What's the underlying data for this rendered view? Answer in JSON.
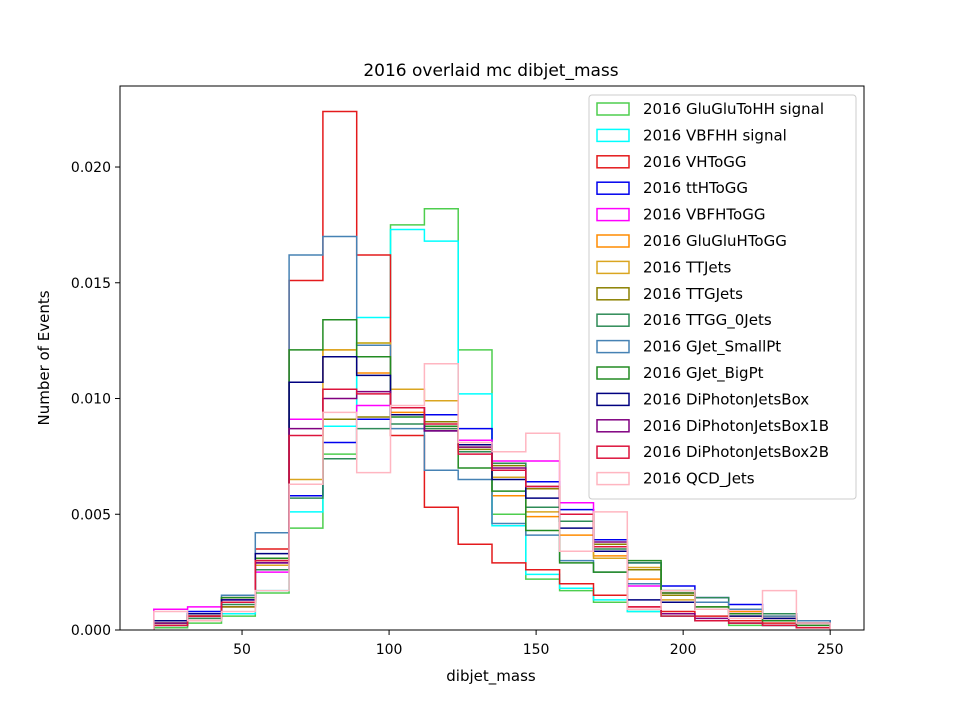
{
  "chart_data": {
    "type": "step-histogram",
    "title": "2016 overlaid mc dibjet_mass",
    "xlabel": "dibjet_mass",
    "ylabel": "Number of Events",
    "xlim": [
      8.5,
      261.5
    ],
    "ylim": [
      0,
      0.0235
    ],
    "x_ticks": [
      {
        "value": 50,
        "label": "50"
      },
      {
        "value": 100,
        "label": "100"
      },
      {
        "value": 150,
        "label": "150"
      },
      {
        "value": 200,
        "label": "200"
      },
      {
        "value": 250,
        "label": "250"
      }
    ],
    "y_ticks": [
      {
        "value": 0.0,
        "label": "0.000"
      },
      {
        "value": 0.005,
        "label": "0.005"
      },
      {
        "value": 0.01,
        "label": "0.010"
      },
      {
        "value": 0.015,
        "label": "0.015"
      },
      {
        "value": 0.02,
        "label": "0.020"
      }
    ],
    "bin_edges": [
      20,
      31.5,
      43,
      54.5,
      66,
      77.5,
      89,
      100.5,
      112,
      123.5,
      135,
      146.5,
      158,
      169.5,
      181,
      192.5,
      204,
      215.5,
      227,
      238.5,
      250
    ],
    "legend_position": "upper right",
    "grid": false,
    "series": [
      {
        "name": "2016 GluGluToHH signal",
        "color": "#4ece4e",
        "values": [
          0.0001,
          0.0003,
          0.0006,
          0.0016,
          0.0044,
          0.0076,
          0.0124,
          0.0175,
          0.0182,
          0.0121,
          0.005,
          0.0022,
          0.0017,
          0.0012,
          0.0008,
          0.0006,
          0.0004,
          0.0002,
          0.0002,
          0.0001
        ]
      },
      {
        "name": "2016 VBFHH signal",
        "color": "#00ffff",
        "values": [
          0.0002,
          0.0004,
          0.0007,
          0.0017,
          0.0051,
          0.0088,
          0.0135,
          0.0173,
          0.0168,
          0.0102,
          0.0045,
          0.0024,
          0.0018,
          0.0013,
          0.0008,
          0.0006,
          0.0004,
          0.0003,
          0.0002,
          0.0001
        ]
      },
      {
        "name": "2016 VHToGG",
        "color": "#e41a1c",
        "values": [
          0.0002,
          0.0005,
          0.001,
          0.0035,
          0.0151,
          0.0224,
          0.0162,
          0.0084,
          0.0053,
          0.0037,
          0.0029,
          0.0026,
          0.002,
          0.0015,
          0.001,
          0.0008,
          0.0006,
          0.0004,
          0.0003,
          0.0002
        ]
      },
      {
        "name": "2016 ttHToGG",
        "color": "#0000ee",
        "values": [
          0.0004,
          0.0008,
          0.0014,
          0.0029,
          0.0058,
          0.0081,
          0.0091,
          0.0093,
          0.0093,
          0.0087,
          0.0072,
          0.0064,
          0.0052,
          0.0039,
          0.0029,
          0.0019,
          0.0014,
          0.0011,
          0.0007,
          0.0004
        ]
      },
      {
        "name": "2016 VBFHToGG",
        "color": "#ff00ff",
        "values": [
          0.0009,
          0.001,
          0.0013,
          0.0025,
          0.0091,
          0.0091,
          0.0097,
          0.0096,
          0.0088,
          0.0082,
          0.0073,
          0.0073,
          0.0055,
          0.0036,
          0.0019,
          0.0016,
          0.0012,
          0.0008,
          0.0005,
          0.0003
        ]
      },
      {
        "name": "2016 GluGluHToGG",
        "color": "#ff8c00",
        "values": [
          0.0003,
          0.0006,
          0.0012,
          0.003,
          0.0107,
          0.0121,
          0.0111,
          0.0094,
          0.0087,
          0.0077,
          0.0058,
          0.0049,
          0.0041,
          0.0032,
          0.0022,
          0.0016,
          0.0012,
          0.0008,
          0.0006,
          0.0004
        ]
      },
      {
        "name": "2016 TTJets",
        "color": "#daa520",
        "values": [
          0.0003,
          0.0007,
          0.0014,
          0.0028,
          0.0065,
          0.0121,
          0.0124,
          0.0104,
          0.0099,
          0.0079,
          0.0066,
          0.0051,
          0.005,
          0.0031,
          0.0027,
          0.0013,
          0.0009,
          0.0006,
          0.0004,
          0.0003
        ]
      },
      {
        "name": "2016 TTGJets",
        "color": "#8b8000",
        "values": [
          0.0003,
          0.0006,
          0.001,
          0.003,
          0.0063,
          0.0091,
          0.0092,
          0.0093,
          0.009,
          0.0078,
          0.0071,
          0.0061,
          0.0047,
          0.0037,
          0.0026,
          0.0015,
          0.001,
          0.0007,
          0.0005,
          0.0003
        ]
      },
      {
        "name": "2016 TTGG_0Jets",
        "color": "#2e8b57",
        "values": [
          0.0002,
          0.0005,
          0.0011,
          0.0026,
          0.0057,
          0.0074,
          0.0087,
          0.0089,
          0.0087,
          0.0077,
          0.0072,
          0.0053,
          0.0047,
          0.0035,
          0.0029,
          0.0017,
          0.0014,
          0.0009,
          0.0007,
          0.0004
        ]
      },
      {
        "name": "2016 GJet_SmallPt",
        "color": "#4682b4",
        "values": [
          0.0003,
          0.0007,
          0.0015,
          0.0042,
          0.0162,
          0.017,
          0.0123,
          0.0087,
          0.0069,
          0.0065,
          0.0046,
          0.0041,
          0.003,
          0.0025,
          0.002,
          0.0017,
          0.0012,
          0.0009,
          0.0006,
          0.0004
        ]
      },
      {
        "name": "2016 GJet_BigPt",
        "color": "#228b22",
        "values": [
          0.0002,
          0.0006,
          0.0014,
          0.0031,
          0.0121,
          0.0134,
          0.0118,
          0.0092,
          0.0088,
          0.007,
          0.006,
          0.0043,
          0.0029,
          0.0025,
          0.003,
          0.0016,
          0.001,
          0.0007,
          0.0004,
          0.0002
        ]
      },
      {
        "name": "2016 DiPhotonJetsBox",
        "color": "#000080",
        "values": [
          0.0004,
          0.0007,
          0.0013,
          0.0033,
          0.0107,
          0.0118,
          0.011,
          0.0093,
          0.0086,
          0.008,
          0.0065,
          0.0057,
          0.0044,
          0.0034,
          0.0013,
          0.0012,
          0.0009,
          0.0006,
          0.0005,
          0.0003
        ]
      },
      {
        "name": "2016 DiPhotonJetsBox1B",
        "color": "#800080",
        "values": [
          0.0003,
          0.0006,
          0.0012,
          0.0029,
          0.0087,
          0.01,
          0.0103,
          0.0096,
          0.0086,
          0.0079,
          0.007,
          0.0062,
          0.005,
          0.0038,
          0.0009,
          0.0007,
          0.0005,
          0.0003,
          0.0002,
          0.0001
        ]
      },
      {
        "name": "2016 DiPhotonJetsBox2B",
        "color": "#dc143c",
        "values": [
          0.0002,
          0.0006,
          0.0012,
          0.003,
          0.0084,
          0.0104,
          0.0102,
          0.0096,
          0.0089,
          0.0076,
          0.0069,
          0.0062,
          0.005,
          0.0036,
          0.001,
          0.0006,
          0.0004,
          0.0003,
          0.0002,
          0.0001
        ]
      },
      {
        "name": "2016 QCD_Jets",
        "color": "#ffb6c1",
        "values": [
          0.0008,
          0.0004,
          0.0008,
          0.0017,
          0.0063,
          0.0094,
          0.0068,
          0.0097,
          0.0115,
          0.0081,
          0.0077,
          0.0085,
          0.0034,
          0.0051,
          0.0009,
          0.0017,
          0.0009,
          0.0005,
          0.0017,
          0.0003
        ]
      }
    ]
  }
}
